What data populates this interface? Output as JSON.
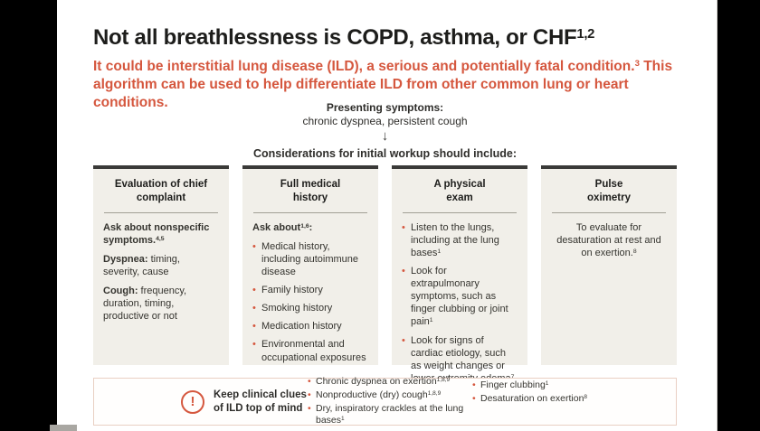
{
  "colors": {
    "accent_red": "#d5573e",
    "title_text": "#1d1d1b",
    "card_background": "#f1efe9",
    "card_top_bar": "#3a3a38",
    "clues_box_border": "#e9cfc3"
  },
  "header": {
    "title": "Not all breathlessness is COPD, asthma, or CHF",
    "title_sup": "1,2",
    "subtitle": [
      {
        "text": "It could be interstitial lung disease (ILD), a serious and potentially fatal condition.",
        "sup": "3"
      },
      {
        "text": " This algorithm can be used to help differentiate ILD from other common lung or heart conditions.",
        "sup": ""
      }
    ]
  },
  "flow": {
    "presenting_label": "Presenting symptoms:",
    "presenting_value": "chronic dyspnea, persistent cough",
    "arrow": "↓",
    "considerations_label": "Considerations for initial workup should include:"
  },
  "cards": [
    {
      "title_lines": [
        "Evaluation of chief",
        "complaint"
      ],
      "paragraphs": [
        {
          "bold": "Ask about nonspecific symptoms.",
          "sup": "4,5",
          "rest": ""
        },
        {
          "bold": "Dyspnea:",
          "sup": "",
          "rest": " timing, severity, cause"
        },
        {
          "bold": "Cough:",
          "sup": "",
          "rest": " frequency, duration, timing, productive or not"
        }
      ]
    },
    {
      "title_lines": [
        "Full medical",
        "history"
      ],
      "lead": {
        "bold": "Ask about",
        "sup": "1,6",
        "tail": ":"
      },
      "bullets": [
        {
          "text": "Medical history, including autoimmune disease",
          "sup": ""
        },
        {
          "text": "Family history",
          "sup": ""
        },
        {
          "text": "Smoking history",
          "sup": ""
        },
        {
          "text": "Medication history",
          "sup": ""
        },
        {
          "text": "Environmental and occupational exposures",
          "sup": ""
        }
      ]
    },
    {
      "title_lines": [
        "A physical",
        "exam"
      ],
      "bullets": [
        {
          "text": "Listen to the lungs, including at the lung bases",
          "sup": "1"
        },
        {
          "text": "Look for extrapulmonary symptoms, such as finger clubbing or joint pain",
          "sup": "1"
        },
        {
          "text": "Look for signs of cardiac etiology, such as weight changes or lower extremity edema",
          "sup": "7"
        }
      ]
    },
    {
      "title_lines": [
        "Pulse",
        "oximetry"
      ],
      "body": {
        "text": "To evaluate for desaturation at rest and on exertion.",
        "sup": "8"
      }
    }
  ],
  "clues": {
    "exclamation": "!",
    "label_lines": [
      "Keep clinical clues",
      "of ILD top of mind"
    ],
    "col1": [
      {
        "text": "Chronic dyspnea on exertion",
        "sup": "1,8,9"
      },
      {
        "text": "Nonproductive (dry) cough",
        "sup": "1,8,9"
      },
      {
        "text": "Dry, inspiratory crackles at the lung bases",
        "sup": "1"
      }
    ],
    "col2": [
      {
        "text": "Finger clubbing",
        "sup": "1"
      },
      {
        "text": "Desaturation on exertion",
        "sup": "8"
      }
    ]
  }
}
